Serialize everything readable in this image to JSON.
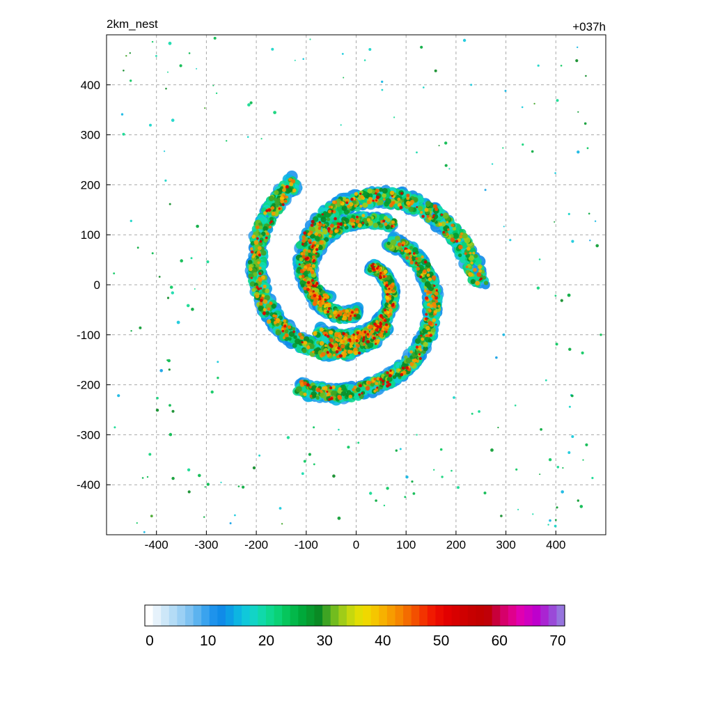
{
  "chart_data": {
    "type": "heatmap",
    "title_left": "2km_nest",
    "title_right": "+037h",
    "xlabel": "",
    "ylabel": "",
    "xlim": [
      -500,
      500
    ],
    "ylim": [
      -500,
      500
    ],
    "x_ticks": [
      -400,
      -300,
      -200,
      -100,
      0,
      100,
      200,
      300,
      400
    ],
    "y_ticks": [
      400,
      300,
      200,
      100,
      0,
      -100,
      -200,
      -300,
      -400
    ],
    "grid": true,
    "colorbar": {
      "orientation": "horizontal",
      "range": [
        0,
        70
      ],
      "ticks": [
        0,
        10,
        20,
        30,
        40,
        50,
        60,
        70
      ],
      "colors": [
        "#ffffff",
        "#e6f2fb",
        "#cde7f8",
        "#b4dcf6",
        "#9bd0f4",
        "#7fc2f1",
        "#5cb3ef",
        "#3aa3ee",
        "#1e93ec",
        "#108be8",
        "#0d9ee6",
        "#0db5e2",
        "#10c8da",
        "#12d4c6",
        "#10d9aa",
        "#0dd88e",
        "#0ad276",
        "#06c65c",
        "#03b84a",
        "#00a93a",
        "#079a2e",
        "#0a8a24",
        "#3ea423",
        "#72bc1f",
        "#a0cc18",
        "#c6d80e",
        "#e2de04",
        "#f0d800",
        "#f5c600",
        "#f7b100",
        "#f79c00",
        "#f68600",
        "#f46c00",
        "#f35000",
        "#f33300",
        "#f11a00",
        "#ea0a00",
        "#e20000",
        "#d80000",
        "#cf0000",
        "#c70000",
        "#c20000",
        "#c00008",
        "#c8003a",
        "#d6006a",
        "#e0008c",
        "#e000b0",
        "#d000c0",
        "#be00cc",
        "#aa24d2",
        "#9a4ad8",
        "#9674de"
      ]
    },
    "storm_center": [
      0,
      0
    ],
    "field_description": "simulated radar reflectivity (dBZ) of a tropical cyclone, spiral rainbands within about 250 km of center"
  }
}
